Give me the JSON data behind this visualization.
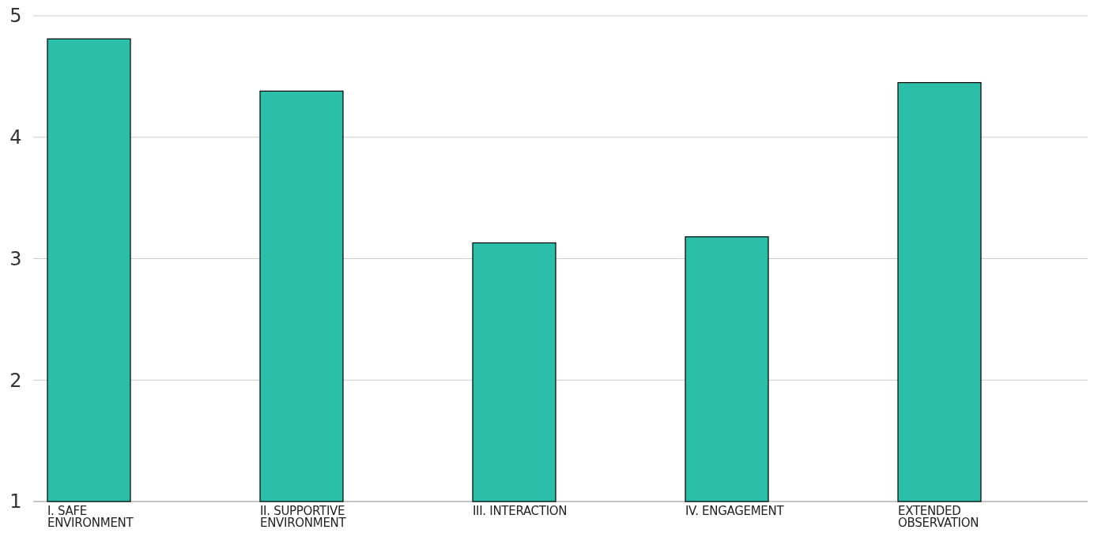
{
  "chart_data": {
    "type": "bar",
    "categories": [
      "I. SAFE ENVIRONMENT",
      "II. SUPPORTIVE ENVIRONMENT",
      "III. INTERACTION",
      "IV. ENGAGEMENT",
      "EXTENDED OBSERVATION"
    ],
    "values": [
      4.81,
      4.38,
      3.13,
      3.18,
      4.45
    ],
    "color": "#2bbfa9",
    "ylim": [
      1,
      5
    ],
    "yticks": [
      1,
      2,
      3,
      4,
      5
    ],
    "grid": "y"
  }
}
